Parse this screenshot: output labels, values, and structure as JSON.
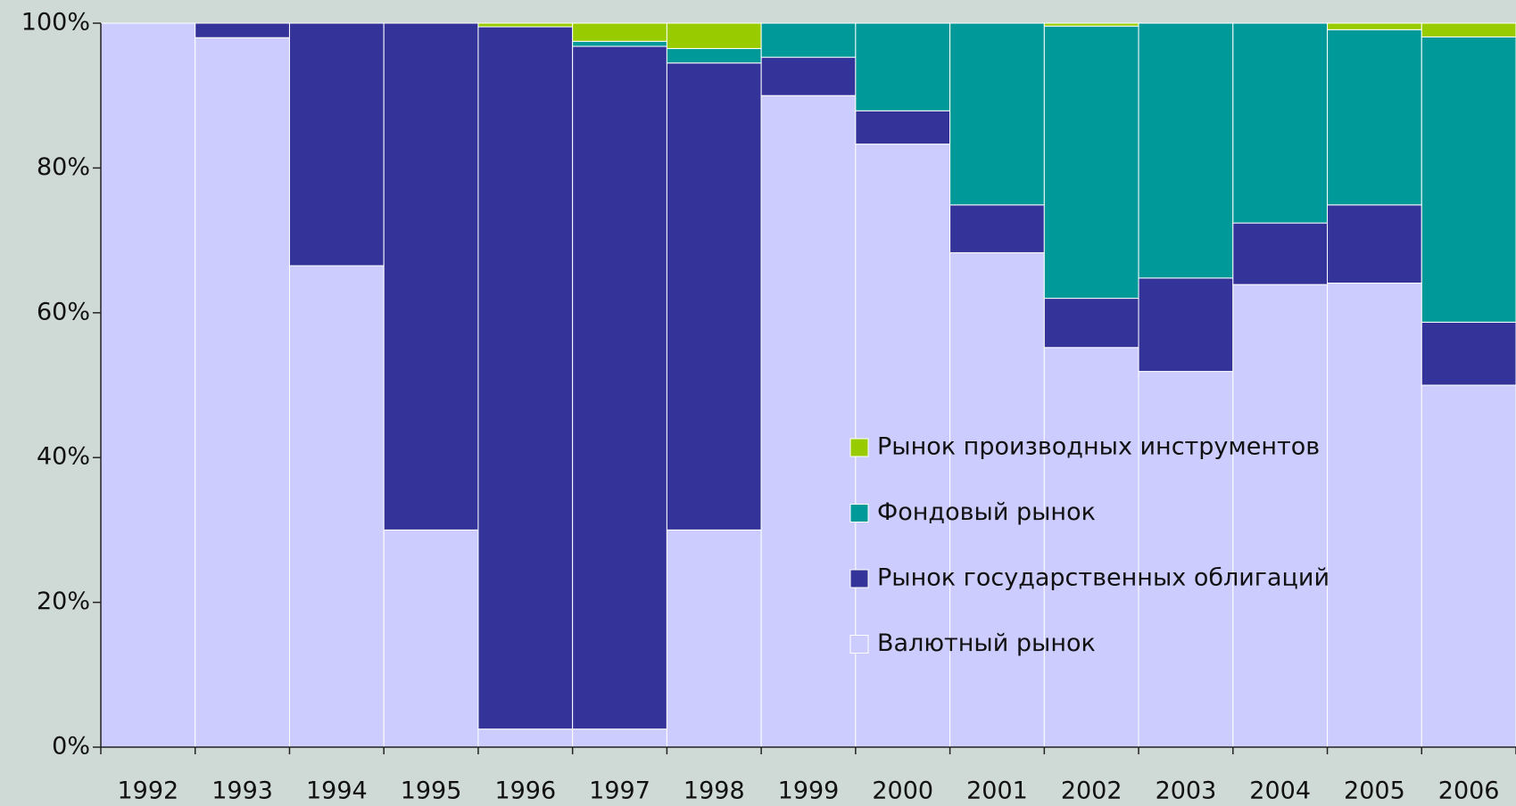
{
  "chart_data": {
    "type": "stacked_bar",
    "categories": [
      "1992",
      "1993",
      "1994",
      "1995",
      "1996",
      "1997",
      "1998",
      "1999",
      "2000",
      "2001",
      "2002",
      "2003",
      "2004",
      "2005",
      "2006"
    ],
    "series": [
      {
        "name": "Валютный рынок",
        "color": "#ccccff",
        "values": [
          100,
          98,
          66.5,
          30,
          2.5,
          2.5,
          30,
          90,
          83.3,
          68.3,
          55.2,
          51.9,
          63.9,
          64.1,
          50
        ]
      },
      {
        "name": "Рынок государственных облигаций",
        "color": "#333399",
        "values": [
          0,
          2,
          33.5,
          70,
          97,
          94.3,
          64.5,
          5.3,
          4.6,
          6.6,
          6.8,
          12.9,
          8.5,
          10.8,
          8.7
        ]
      },
      {
        "name": "Фондовый рынок",
        "color": "#009999",
        "values": [
          0,
          0,
          0,
          0,
          0,
          0.7,
          2,
          4.7,
          12.1,
          25.1,
          37.6,
          35.2,
          27.6,
          24.2,
          39.4
        ]
      },
      {
        "name": "Рынок производных инструментов",
        "color": "#99cc00",
        "values": [
          0,
          0,
          0,
          0,
          0.5,
          2.5,
          3.5,
          0,
          0,
          0,
          0.4,
          0,
          0,
          0.9,
          1.9
        ]
      }
    ],
    "ylim": [
      0,
      100
    ],
    "yticks": [
      {
        "value": 0,
        "label": "0%"
      },
      {
        "value": 20,
        "label": "20%"
      },
      {
        "value": 40,
        "label": "40%"
      },
      {
        "value": 60,
        "label": "60%"
      },
      {
        "value": 80,
        "label": "80%"
      },
      {
        "value": 100,
        "label": "100%"
      }
    ]
  }
}
